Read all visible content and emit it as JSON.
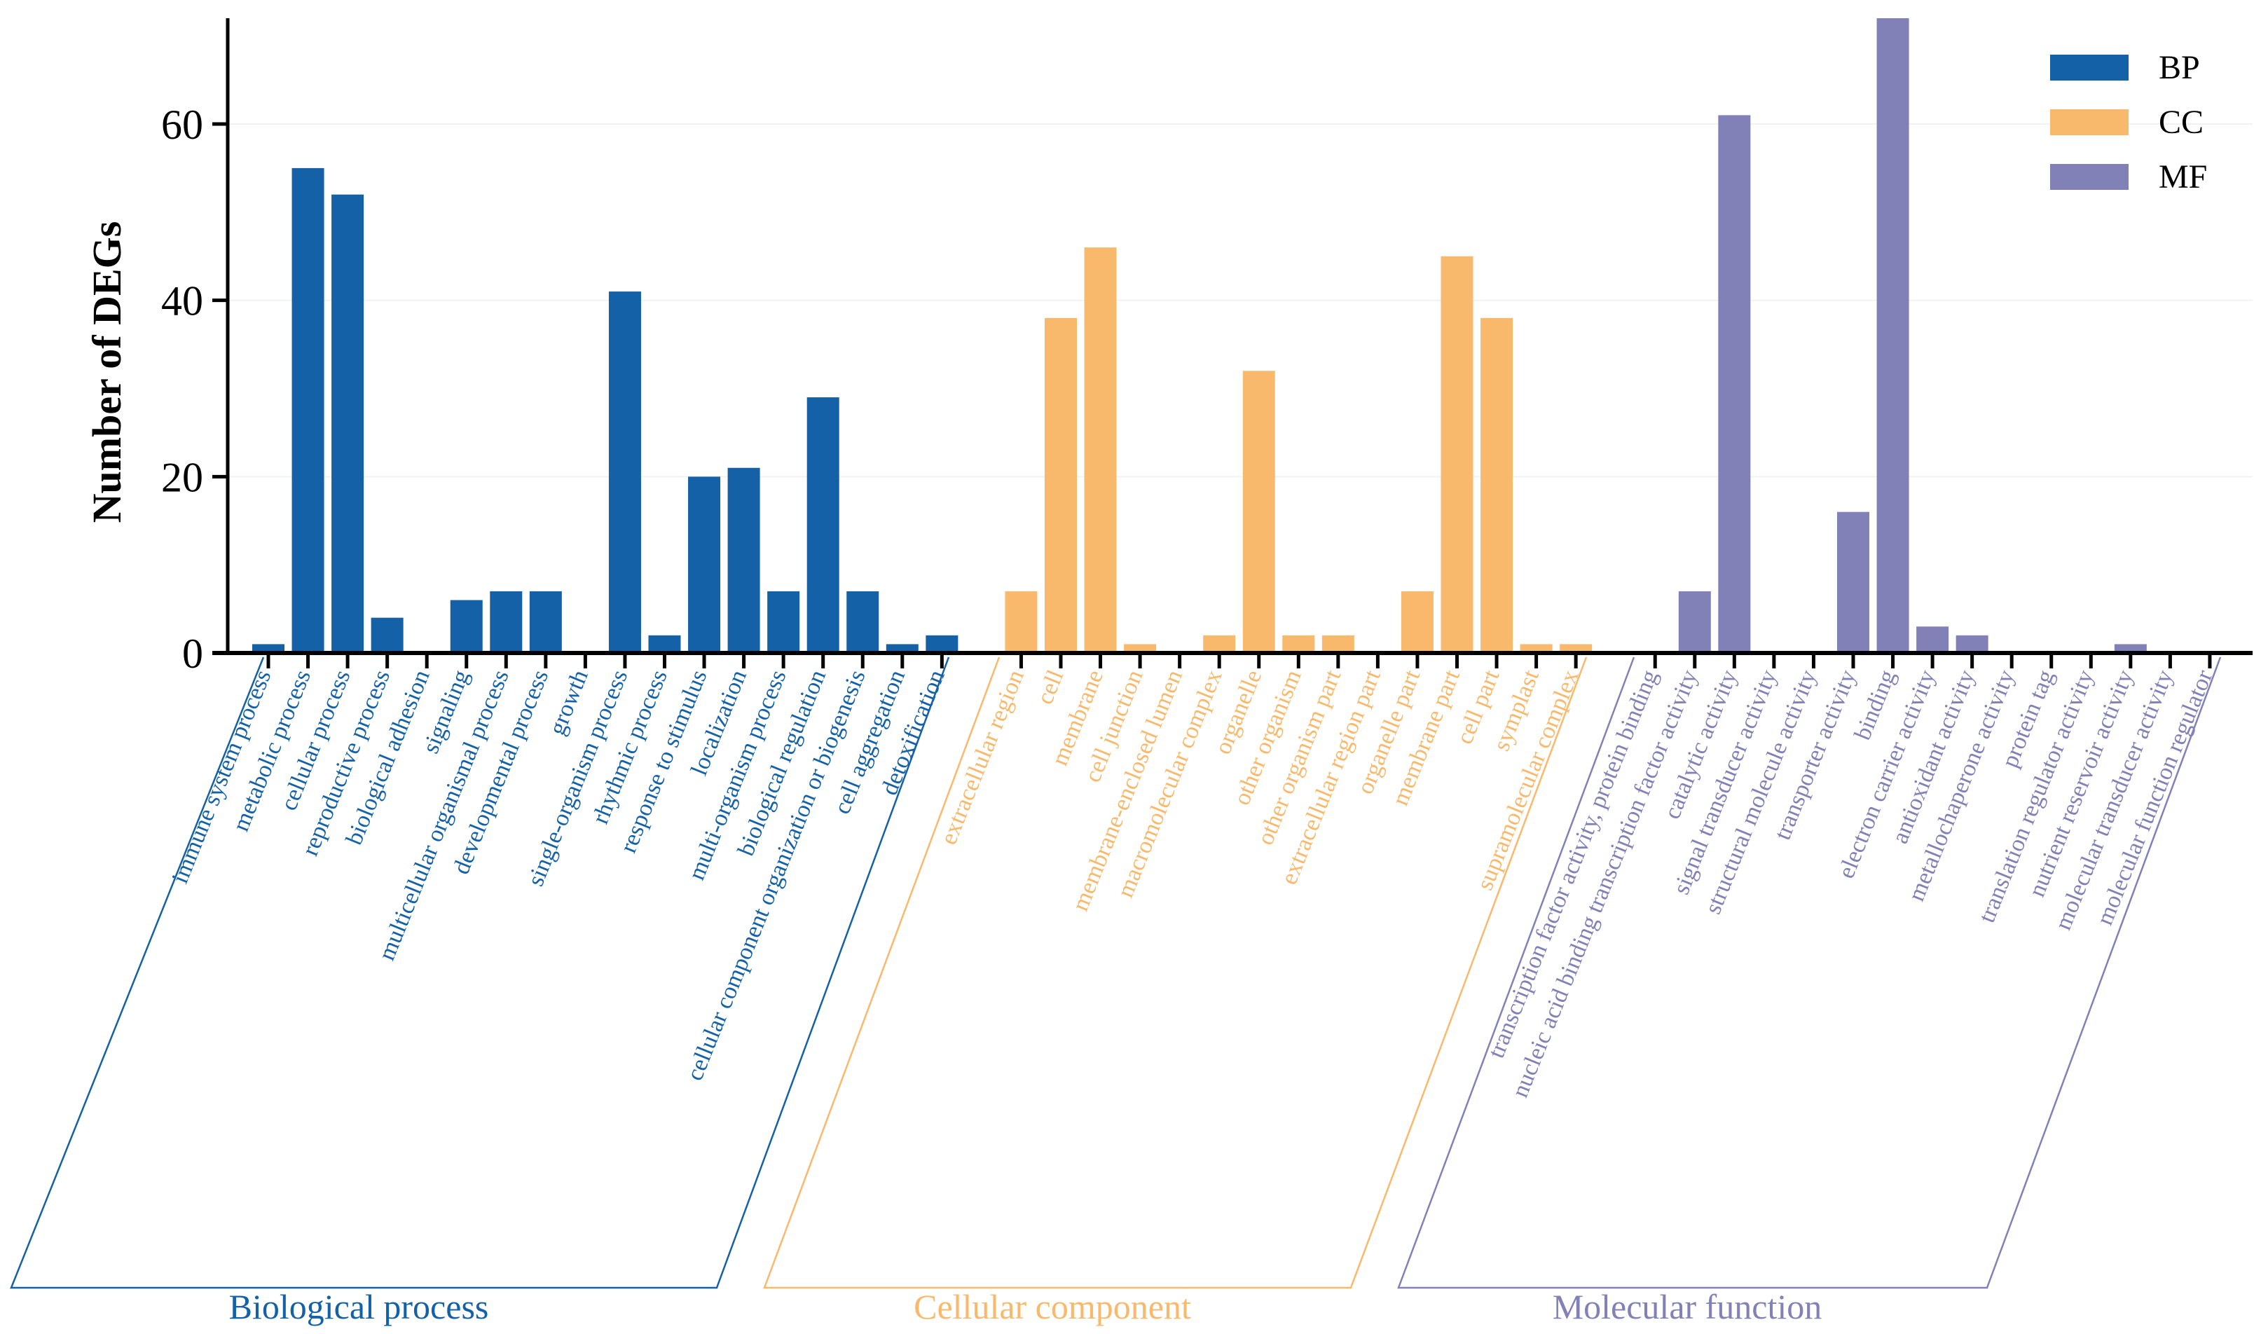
{
  "chart_data": {
    "type": "bar",
    "title": "",
    "xlabel": "",
    "ylabel": "Number of DEGs",
    "ylim": [
      0,
      72
    ],
    "yticks": [
      0,
      20,
      40,
      60
    ],
    "legend": {
      "placement": "top-right",
      "entries": [
        "BP",
        "CC",
        "MF"
      ]
    },
    "colors": {
      "BP": "#1461a8",
      "CC": "#f9b96d",
      "MF": "#8181b8"
    },
    "groups": [
      {
        "key": "BP",
        "name": "Biological process",
        "categories": [
          "immune system process",
          "metabolic process",
          "cellular process",
          "reproductive process",
          "biological adhesion",
          "signaling",
          "multicellular organismal process",
          "developmental process",
          "growth",
          "single-organism process",
          "rhythmic process",
          "response to stimulus",
          "localization",
          "multi-organism process",
          "biological regulation",
          "cellular component organization or biogenesis",
          "cell aggregation",
          "detoxification"
        ],
        "values": [
          1,
          55,
          52,
          4,
          0,
          6,
          7,
          7,
          0,
          41,
          2,
          20,
          21,
          7,
          29,
          7,
          1,
          2
        ]
      },
      {
        "key": "CC",
        "name": "Cellular component",
        "categories": [
          "extracellular region",
          "cell",
          "membrane",
          "cell junction",
          "membrane-enclosed lumen",
          "macromolecular complex",
          "organelle",
          "other organism",
          "other organism part",
          "extracellular region part",
          "organelle part",
          "membrane part",
          "cell part",
          "symplast",
          "supramolecular complex"
        ],
        "values": [
          7,
          38,
          46,
          1,
          0,
          2,
          32,
          2,
          2,
          0,
          7,
          45,
          38,
          1,
          1
        ]
      },
      {
        "key": "MF",
        "name": "Molecular function",
        "categories": [
          "transcription factor activity, protein binding",
          "nucleic acid binding transcription factor activity",
          "catalytic activity",
          "signal transducer activity",
          "structural molecule activity",
          "transporter activity",
          "binding",
          "electron carrier activity",
          "antioxidant activity",
          "metallochaperone activity",
          "protein tag",
          "translation regulator activity",
          "nutrient reservoir activity",
          "molecular transducer activity",
          "molecular function regulator"
        ],
        "values": [
          0,
          7,
          61,
          0,
          0,
          16,
          72,
          3,
          2,
          0,
          0,
          0,
          1,
          0,
          0
        ]
      }
    ]
  }
}
